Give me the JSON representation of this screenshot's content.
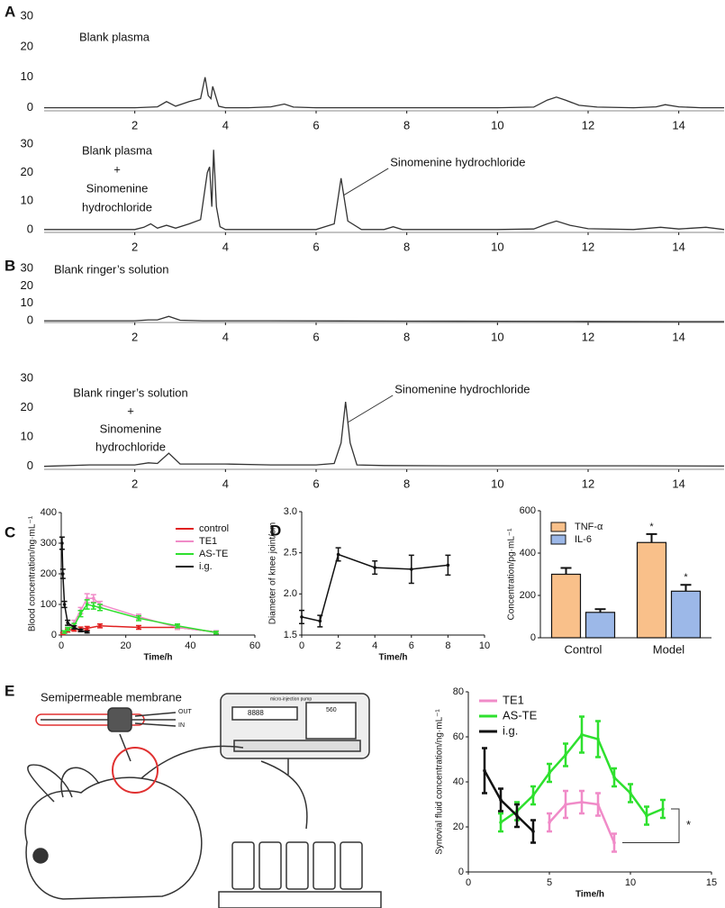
{
  "chart_data": [
    {
      "type": "line",
      "panel": "A",
      "label": [
        "Blank plasma"
      ],
      "color": "#333333",
      "xlim": [
        0,
        15
      ],
      "ylim": [
        -1,
        30
      ],
      "xticks": [
        2,
        4,
        6,
        8,
        10,
        12,
        14
      ],
      "yticks": [
        0,
        10,
        20,
        30
      ],
      "x": [
        0,
        0.5,
        1,
        1.5,
        2,
        2.5,
        2.7,
        2.9,
        3.2,
        3.45,
        3.55,
        3.62,
        3.68,
        3.72,
        3.78,
        3.85,
        4.0,
        4.5,
        5.0,
        5.3,
        5.5,
        6,
        7,
        8,
        9,
        10,
        10.8,
        11.1,
        11.3,
        11.5,
        11.8,
        12.2,
        13,
        13.5,
        13.7,
        14,
        14.5,
        15
      ],
      "values": [
        0,
        0,
        0,
        0,
        0,
        0.3,
        2,
        0.5,
        2,
        3,
        10,
        4,
        3,
        7,
        4,
        0.5,
        0,
        0,
        0.3,
        1.2,
        0.2,
        0,
        0,
        0,
        0,
        0,
        0.2,
        2.5,
        3.5,
        2.5,
        0.8,
        0.2,
        0,
        0.3,
        1,
        0.3,
        0,
        0
      ]
    },
    {
      "type": "line",
      "label": [
        "Blank plasma",
        "+",
        "Sinomenine",
        "hydrochloride"
      ],
      "color": "#333333",
      "annotation": {
        "text": "Sinomenine hydrochloride",
        "x": 6.6,
        "y": 12
      },
      "xlim": [
        0,
        15
      ],
      "ylim": [
        -1,
        30
      ],
      "xticks": [
        2,
        4,
        6,
        8,
        10,
        12,
        14
      ],
      "yticks": [
        0,
        10,
        20,
        30
      ],
      "x": [
        0,
        1,
        2,
        2.2,
        2.35,
        2.5,
        2.7,
        2.9,
        3.2,
        3.45,
        3.6,
        3.65,
        3.7,
        3.74,
        3.8,
        3.88,
        4.0,
        5,
        6,
        6.4,
        6.55,
        6.7,
        7,
        7.5,
        7.7,
        7.9,
        9,
        10,
        10.8,
        11.1,
        11.3,
        11.6,
        12,
        13,
        13.6,
        14,
        14.6,
        15
      ],
      "values": [
        0,
        0,
        0,
        0.8,
        2,
        0.5,
        1.5,
        0.5,
        2,
        3.5,
        20,
        22,
        8,
        28,
        8,
        1,
        0,
        0,
        0,
        2,
        18,
        3,
        0,
        0,
        1,
        0,
        0,
        0,
        0.2,
        2,
        3,
        1.5,
        0.3,
        0,
        0.8,
        0.2,
        0.8,
        0
      ]
    },
    {
      "type": "line",
      "panel": "B",
      "label": [
        "Blank ringer’s solution"
      ],
      "color": "#333333",
      "xlim": [
        0,
        15
      ],
      "ylim": [
        -1,
        30
      ],
      "xticks": [
        2,
        4,
        6,
        8,
        10,
        12,
        14
      ],
      "yticks": [
        0,
        10,
        20,
        30
      ],
      "x": [
        0,
        1,
        2,
        2.3,
        2.5,
        2.75,
        3,
        3.5,
        5,
        8,
        10,
        12,
        14,
        15
      ],
      "values": [
        0,
        0,
        0,
        0.5,
        0.5,
        2.5,
        0.3,
        0,
        0,
        -0.2,
        -0.3,
        -0.4,
        -0.5,
        -0.5
      ]
    },
    {
      "type": "line",
      "label": [
        "Blank ringer’s solution",
        "+",
        "Sinomenine",
        "hydrochloride"
      ],
      "color": "#333333",
      "annotation": {
        "text": "Sinomenine hydrochloride",
        "x": 6.7,
        "y": 15
      },
      "xlim": [
        0,
        15
      ],
      "ylim": [
        -1,
        30
      ],
      "xticks": [
        2,
        4,
        6,
        8,
        10,
        12,
        14
      ],
      "yticks": [
        0,
        10,
        20,
        30
      ],
      "x": [
        0,
        1,
        2,
        2.3,
        2.5,
        2.75,
        3,
        4,
        5,
        6,
        6.4,
        6.55,
        6.65,
        6.75,
        6.9,
        7.5,
        9,
        11,
        13,
        15
      ],
      "values": [
        0,
        0.5,
        0.5,
        1.2,
        1,
        4.5,
        0.8,
        0.8,
        0.5,
        0.5,
        1,
        8,
        22,
        8,
        0.5,
        0.3,
        0.2,
        0.2,
        0.2,
        0.1
      ]
    },
    {
      "type": "line",
      "panel": "C",
      "xlabel": "Time/h",
      "ylabel": "Blood concentration/ng·mL⁻¹",
      "legend": "upper right",
      "xlim": [
        0,
        60
      ],
      "ylim": [
        0,
        400
      ],
      "xticks": [
        0,
        20,
        40,
        60
      ],
      "yticks": [
        0,
        100,
        200,
        300,
        400
      ],
      "series": [
        {
          "name": "control",
          "color": "#e02020",
          "x": [
            0.5,
            1,
            2,
            4,
            6,
            8,
            12,
            24,
            36,
            48
          ],
          "values": [
            5,
            10,
            15,
            18,
            20,
            22,
            30,
            25,
            25,
            10
          ],
          "errors": [
            3,
            4,
            5,
            5,
            6,
            6,
            6,
            6,
            6,
            4
          ]
        },
        {
          "name": "TE1",
          "color": "#f08bc8",
          "x": [
            1,
            2,
            4,
            6,
            8,
            10,
            12,
            24,
            36,
            48
          ],
          "values": [
            10,
            20,
            40,
            80,
            120,
            120,
            100,
            60,
            25,
            10
          ],
          "errors": [
            4,
            5,
            8,
            10,
            15,
            12,
            10,
            8,
            6,
            4
          ]
        },
        {
          "name": "AS-TE",
          "color": "#2ee02e",
          "x": [
            1,
            2,
            4,
            6,
            8,
            10,
            12,
            24,
            36,
            48
          ],
          "values": [
            10,
            20,
            30,
            70,
            100,
            95,
            90,
            55,
            30,
            8
          ],
          "errors": [
            4,
            5,
            8,
            10,
            15,
            10,
            10,
            8,
            6,
            4
          ]
        },
        {
          "name": "i.g.",
          "color": "#111111",
          "x": [
            0.25,
            0.5,
            1,
            2,
            4,
            6,
            8
          ],
          "values": [
            300,
            200,
            100,
            40,
            25,
            15,
            10
          ],
          "errors": [
            20,
            15,
            10,
            8,
            5,
            4,
            3
          ]
        }
      ]
    },
    {
      "type": "line",
      "panel": "D",
      "xlabel": "Time/h",
      "ylabel": "Diameter of knee joint/cm",
      "xlim": [
        0,
        10
      ],
      "ylim": [
        1.5,
        3.0
      ],
      "xticks": [
        0,
        2,
        4,
        6,
        8,
        10
      ],
      "yticks": [
        {
          "value": 1.5,
          "label": "1.5"
        },
        {
          "value": 2.0,
          "label": "2.0"
        },
        {
          "value": 2.5,
          "label": "2.5"
        },
        {
          "value": 3.0,
          "label": "3.0"
        }
      ],
      "series": [
        {
          "color": "#111111",
          "x": [
            0,
            1,
            2,
            4,
            6,
            8
          ],
          "values": [
            1.72,
            1.67,
            2.48,
            2.32,
            2.3,
            2.35
          ],
          "errors": [
            0.08,
            0.07,
            0.08,
            0.08,
            0.17,
            0.12
          ]
        }
      ]
    },
    {
      "type": "bar",
      "ylabel": "Concentration/pg·mL⁻¹",
      "legend": "upper left",
      "categories": [
        "Control",
        "Model"
      ],
      "ylim": [
        0,
        600
      ],
      "yticks": [
        0,
        200,
        400,
        600
      ],
      "series": [
        {
          "name": "TNF-α",
          "color": "#f9c08a",
          "values": [
            300,
            450
          ],
          "errors": [
            30,
            40
          ],
          "stars": [
            null,
            "*"
          ]
        },
        {
          "name": "IL-6",
          "color": "#9cb8e8",
          "values": [
            120,
            220
          ],
          "errors": [
            15,
            30
          ],
          "stars": [
            null,
            "*"
          ]
        }
      ]
    },
    {
      "type": "line",
      "panel": "E",
      "xlabel": "Time/h",
      "ylabel": "Synovial fluid concentration/ng·mL⁻¹",
      "legend": "upper left",
      "annotation": "*",
      "xlim": [
        0,
        15
      ],
      "ylim": [
        0,
        80
      ],
      "xticks": [
        0,
        5,
        10,
        15
      ],
      "yticks": [
        0,
        20,
        40,
        60,
        80
      ],
      "series": [
        {
          "name": "TE1",
          "color": "#f08bc8",
          "x": [
            5,
            6,
            7,
            8,
            9
          ],
          "values": [
            22,
            30,
            31,
            30,
            13
          ],
          "errors": [
            4,
            6,
            5,
            5,
            4
          ]
        },
        {
          "name": "AS-TE",
          "color": "#2ee02e",
          "x": [
            2,
            3,
            4,
            5,
            6,
            7,
            8,
            9,
            10,
            11,
            12
          ],
          "values": [
            22,
            27,
            34,
            44,
            52,
            61,
            59,
            42,
            35,
            25,
            28
          ],
          "errors": [
            4,
            4,
            4,
            4,
            5,
            8,
            8,
            4,
            4,
            4,
            4
          ]
        },
        {
          "name": "i.g.",
          "color": "#111111",
          "x": [
            1,
            2,
            3,
            4
          ],
          "values": [
            45,
            32,
            25,
            18
          ],
          "errors": [
            10,
            5,
            5,
            5
          ]
        }
      ]
    }
  ],
  "illustration": {
    "membrane": "Semipermeable membrane",
    "out": "OUT",
    "in": "IN",
    "pump": "micro-injection pump",
    "display": "8888",
    "rate": "560"
  }
}
